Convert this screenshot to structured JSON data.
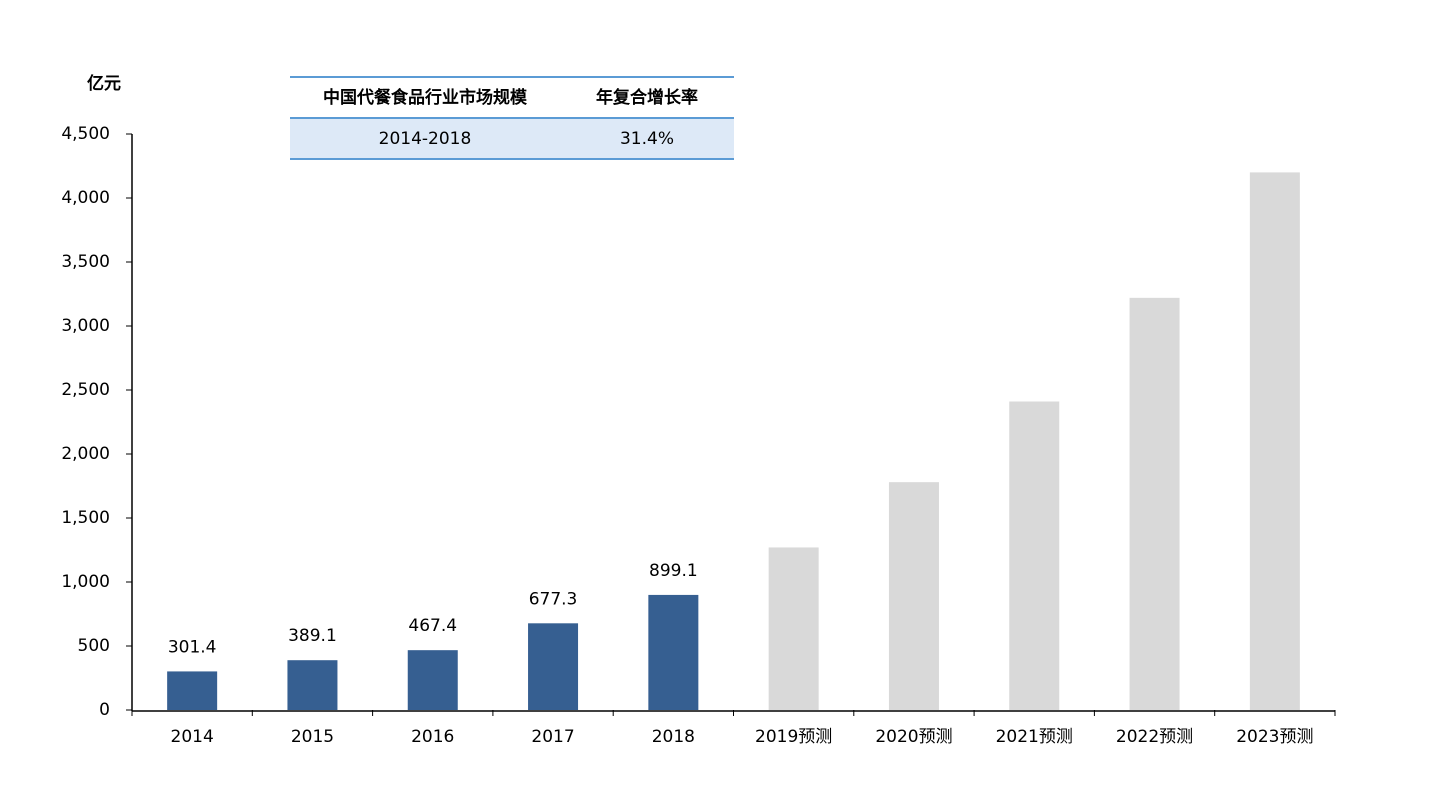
{
  "chart_data": {
    "type": "bar",
    "y_label": "亿元",
    "categories": [
      "2014",
      "2015",
      "2016",
      "2017",
      "2018",
      "2019预测",
      "2020预测",
      "2021预测",
      "2022预测",
      "2023预测"
    ],
    "series": [
      {
        "color": "#365f91",
        "data_labels": true,
        "values": [
          301.4,
          389.1,
          467.4,
          677.3,
          899.1,
          null,
          null,
          null,
          null,
          null
        ]
      },
      {
        "color": "#d9d9d9",
        "data_labels": false,
        "values": [
          null,
          null,
          null,
          null,
          null,
          1270,
          1780,
          2410,
          3220,
          4200
        ]
      }
    ],
    "ylim": [
      0,
      4500
    ],
    "yticks": [
      0,
      500,
      {
        "value": 1000,
        "label": "1,000"
      },
      {
        "value": 1500,
        "label": "1,500"
      },
      {
        "value": 2000,
        "label": "2,000"
      },
      {
        "value": 2500,
        "label": "2,500"
      },
      {
        "value": 3000,
        "label": "3,000"
      },
      {
        "value": 3500,
        "label": "3,500"
      },
      {
        "value": 4000,
        "label": "4,000"
      },
      {
        "value": 4500,
        "label": "4,500"
      }
    ],
    "grid": false
  },
  "table": {
    "header": [
      "中国代餐食品行业市场规模",
      "年复合增长率"
    ],
    "rows": [
      [
        "2014-2018",
        "31.4%"
      ]
    ]
  }
}
